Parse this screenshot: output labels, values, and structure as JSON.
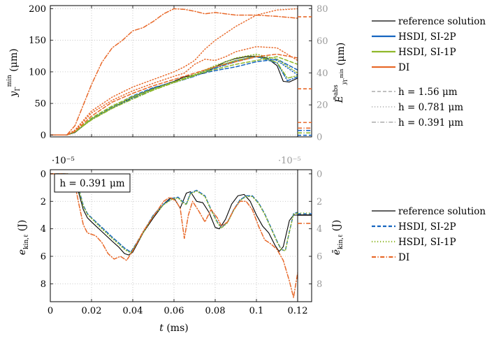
{
  "chart_data": [
    {
      "type": "line",
      "panel": "top",
      "ylabel": "y_Γ^min (μm)",
      "ylabel_right": "Ē^abs_{y_Γ^min} (μm)",
      "x_ticks": [
        "0",
        "0.02",
        "0.04",
        "0.06",
        "0.08",
        "0.1",
        "0.12"
      ],
      "y_ticks": [
        "0",
        "50",
        "100",
        "150",
        "200"
      ],
      "y_ticks_right": [
        "0",
        "20",
        "40",
        "60",
        "80"
      ],
      "xlim": [
        0,
        0.12
      ],
      "ylim": [
        205,
        -3
      ],
      "ylim_right": [
        0,
        82
      ],
      "y_inverted": true,
      "grid": true,
      "legend_methods": [
        "reference solution",
        "HSDI, SI-2P",
        "HSDI, SI-1P",
        "DI"
      ],
      "legend_resolutions": [
        "h = 1.56 μm",
        "h = 0.781 μm",
        "h = 0.391 μm"
      ],
      "series": [
        {
          "method": "reference",
          "style": "solid",
          "color": "#000000",
          "x": [
            0,
            0.008,
            0.012,
            0.02,
            0.03,
            0.04,
            0.05,
            0.06,
            0.065,
            0.07,
            0.075,
            0.08,
            0.085,
            0.09,
            0.095,
            0.1,
            0.105,
            0.11,
            0.113,
            0.116,
            0.12
          ],
          "y": [
            0,
            0,
            4,
            25,
            43,
            60,
            74,
            85,
            92,
            95,
            98,
            108,
            116,
            121,
            124,
            125,
            122,
            110,
            85,
            84,
            90
          ]
        },
        {
          "method": "HSDI, SI-2P",
          "style": "dashed",
          "color": "#1565c0",
          "x": [
            0,
            0.008,
            0.012,
            0.02,
            0.03,
            0.04,
            0.05,
            0.06,
            0.07,
            0.08,
            0.09,
            0.1,
            0.11,
            0.12
          ],
          "y": [
            0,
            0,
            5,
            26,
            45,
            62,
            75,
            84,
            95,
            102,
            108,
            116,
            120,
            103
          ]
        },
        {
          "method": "HSDI, SI-2P",
          "style": "dotted",
          "color": "#1565c0",
          "x": [
            0,
            0.008,
            0.012,
            0.02,
            0.03,
            0.04,
            0.05,
            0.06,
            0.07,
            0.08,
            0.09,
            0.1,
            0.11,
            0.12
          ],
          "y": [
            0,
            0,
            5,
            25,
            44,
            60,
            73,
            83,
            95,
            108,
            118,
            124,
            118,
            95
          ]
        },
        {
          "method": "HSDI, SI-2P",
          "style": "dashdot",
          "color": "#1565c0",
          "x": [
            0,
            0.008,
            0.012,
            0.02,
            0.03,
            0.04,
            0.05,
            0.06,
            0.07,
            0.08,
            0.09,
            0.1,
            0.11,
            0.115,
            0.12
          ],
          "y": [
            0,
            0,
            5,
            25,
            43,
            58,
            72,
            83,
            93,
            106,
            116,
            124,
            114,
            86,
            92
          ]
        },
        {
          "method": "HSDI, SI-1P",
          "style": "dashed",
          "color": "#8fb82a",
          "x": [
            0,
            0.008,
            0.012,
            0.02,
            0.03,
            0.04,
            0.05,
            0.06,
            0.07,
            0.08,
            0.09,
            0.1,
            0.11,
            0.12
          ],
          "y": [
            0,
            0,
            5,
            27,
            46,
            61,
            73,
            84,
            95,
            104,
            112,
            118,
            124,
            112
          ]
        },
        {
          "method": "HSDI, SI-1P",
          "style": "dotted",
          "color": "#8fb82a",
          "x": [
            0,
            0.008,
            0.012,
            0.02,
            0.03,
            0.04,
            0.05,
            0.06,
            0.07,
            0.08,
            0.09,
            0.1,
            0.11,
            0.12
          ],
          "y": [
            0,
            0,
            5,
            25,
            44,
            60,
            72,
            84,
            96,
            110,
            122,
            128,
            120,
            98
          ]
        },
        {
          "method": "HSDI, SI-1P",
          "style": "dashdot",
          "color": "#8fb82a",
          "x": [
            0,
            0.008,
            0.012,
            0.02,
            0.03,
            0.04,
            0.05,
            0.06,
            0.07,
            0.08,
            0.09,
            0.1,
            0.11,
            0.115,
            0.12
          ],
          "y": [
            0,
            0,
            5,
            24,
            42,
            57,
            71,
            83,
            94,
            108,
            118,
            125,
            115,
            90,
            94
          ]
        },
        {
          "method": "DI",
          "style": "dashed",
          "color": "#e8692a",
          "x": [
            0,
            0.008,
            0.012,
            0.02,
            0.03,
            0.04,
            0.05,
            0.06,
            0.07,
            0.08,
            0.09,
            0.1,
            0.11,
            0.12
          ],
          "y": [
            0,
            0,
            6,
            30,
            52,
            66,
            78,
            88,
            98,
            108,
            116,
            124,
            128,
            122
          ]
        },
        {
          "method": "DI",
          "style": "dotted",
          "color": "#e8692a",
          "x": [
            0,
            0.008,
            0.012,
            0.02,
            0.03,
            0.04,
            0.05,
            0.06,
            0.065,
            0.07,
            0.075,
            0.08,
            0.09,
            0.1,
            0.11,
            0.12
          ],
          "y": [
            0,
            0,
            8,
            38,
            60,
            76,
            88,
            100,
            108,
            118,
            136,
            150,
            172,
            190,
            198,
            200
          ]
        },
        {
          "method": "DI",
          "style": "dashdot",
          "color": "#e8692a",
          "x": [
            0,
            0.008,
            0.012,
            0.02,
            0.025,
            0.03,
            0.035,
            0.04,
            0.045,
            0.05,
            0.055,
            0.06,
            0.065,
            0.07,
            0.075,
            0.08,
            0.09,
            0.1,
            0.11,
            0.12
          ],
          "y": [
            0,
            0,
            15,
            80,
            115,
            138,
            150,
            165,
            170,
            180,
            192,
            200,
            199,
            196,
            192,
            194,
            190,
            190,
            188,
            185
          ]
        },
        {
          "method": "DI",
          "style": "dotted",
          "color": "#e8692a",
          "x": [
            0,
            0.008,
            0.012,
            0.02,
            0.03,
            0.04,
            0.05,
            0.06,
            0.065,
            0.07,
            0.075,
            0.08,
            0.085,
            0.09,
            0.1,
            0.11,
            0.12
          ],
          "y": [
            0,
            0,
            7,
            35,
            55,
            70,
            82,
            93,
            98,
            112,
            120,
            118,
            124,
            132,
            140,
            138,
            118
          ]
        }
      ],
      "right_axis_markers": [
        {
          "color": "#e8692a",
          "style": "dashed",
          "value": 75
        },
        {
          "color": "#e8692a",
          "style": "dashed",
          "value": 30
        },
        {
          "color": "#e8692a",
          "style": "dashed",
          "value": 9
        },
        {
          "color": "#e8692a",
          "style": "dashdot",
          "value": 5.5
        },
        {
          "color": "#1565c0",
          "style": "dashdot",
          "value": 4
        },
        {
          "color": "#8fb82a",
          "style": "dashdot",
          "value": 2.5
        },
        {
          "color": "#1565c0",
          "style": "dashed",
          "value": 1
        }
      ]
    },
    {
      "type": "line",
      "panel": "bottom",
      "title_box": "h = 0.391 μm",
      "xlabel": "t (ms)",
      "ylabel": "e_kin,ℓ (J)",
      "ylabel_right": "ē_kin,ℓ (J)",
      "exponent_left": "·10⁻⁵",
      "exponent_right": "·10⁻⁵",
      "x_ticks": [
        "0",
        "0.02",
        "0.04",
        "0.06",
        "0.08",
        "0.1",
        "0.12"
      ],
      "y_ticks": [
        "0",
        "2",
        "4",
        "6",
        "8"
      ],
      "y_ticks_right": [
        "0",
        "2",
        "4",
        "6",
        "8"
      ],
      "xlim": [
        0,
        0.12
      ],
      "ylim": [
        -0.3,
        9.3
      ],
      "grid": true,
      "legend": [
        "reference solution",
        "HSDI, SI-2P",
        "HSDI, SI-1P",
        "DI"
      ],
      "series": [
        {
          "name": "reference solution",
          "style": "solid",
          "color": "#000000",
          "x": [
            0,
            0.008,
            0.01,
            0.012,
            0.014,
            0.016,
            0.018,
            0.02,
            0.025,
            0.03,
            0.033,
            0.036,
            0.038,
            0.04,
            0.045,
            0.05,
            0.055,
            0.058,
            0.06,
            0.063,
            0.066,
            0.068,
            0.071,
            0.074,
            0.077,
            0.08,
            0.082,
            0.085,
            0.088,
            0.091,
            0.094,
            0.097,
            0.1,
            0.103,
            0.106,
            0.109,
            0.111,
            0.113,
            0.116,
            0.118,
            0.12
          ],
          "y": [
            0,
            0,
            0.05,
            0.4,
            1.5,
            2.6,
            3.2,
            3.5,
            4.2,
            4.9,
            5.3,
            5.8,
            5.9,
            5.7,
            4.3,
            3.2,
            2.2,
            1.8,
            1.75,
            2.5,
            1.4,
            1.3,
            2.0,
            2.1,
            2.8,
            3.9,
            4.0,
            3.3,
            2.2,
            1.6,
            1.5,
            2.0,
            3.0,
            3.8,
            4.3,
            5.2,
            5.65,
            5.3,
            3.4,
            3.0,
            3.0
          ]
        },
        {
          "name": "HSDI, SI-2P",
          "style": "dashed",
          "color": "#1565c0",
          "x": [
            0,
            0.008,
            0.01,
            0.012,
            0.014,
            0.016,
            0.018,
            0.02,
            0.025,
            0.03,
            0.033,
            0.036,
            0.039,
            0.042,
            0.046,
            0.05,
            0.055,
            0.059,
            0.062,
            0.064,
            0.066,
            0.068,
            0.071,
            0.075,
            0.078,
            0.081,
            0.083,
            0.086,
            0.089,
            0.092,
            0.095,
            0.098,
            0.101,
            0.104,
            0.107,
            0.11,
            0.112,
            0.114,
            0.116,
            0.118,
            0.12
          ],
          "y": [
            0,
            0,
            0.05,
            0.3,
            1.2,
            2.3,
            2.9,
            3.2,
            3.9,
            4.6,
            5.0,
            5.4,
            5.7,
            5.0,
            4.0,
            3.0,
            2.2,
            1.8,
            1.7,
            2.0,
            2.2,
            1.4,
            1.2,
            1.6,
            2.6,
            3.5,
            3.9,
            3.5,
            2.6,
            1.9,
            1.6,
            1.6,
            2.1,
            2.9,
            3.9,
            4.9,
            5.5,
            5.6,
            4.2,
            2.9,
            2.8
          ]
        },
        {
          "name": "HSDI, SI-1P",
          "style": "dotted",
          "color": "#8fb82a",
          "x": [
            0,
            0.008,
            0.01,
            0.012,
            0.014,
            0.016,
            0.018,
            0.02,
            0.025,
            0.03,
            0.033,
            0.036,
            0.039,
            0.042,
            0.046,
            0.05,
            0.055,
            0.059,
            0.062,
            0.064,
            0.066,
            0.068,
            0.071,
            0.075,
            0.078,
            0.081,
            0.083,
            0.086,
            0.089,
            0.092,
            0.095,
            0.098,
            0.101,
            0.104,
            0.107,
            0.11,
            0.112,
            0.114,
            0.116,
            0.118,
            0.12
          ],
          "y": [
            0,
            0,
            0.05,
            0.35,
            1.25,
            2.35,
            2.95,
            3.25,
            4.0,
            4.7,
            5.1,
            5.5,
            5.75,
            5.05,
            4.05,
            3.05,
            2.25,
            1.85,
            1.75,
            2.05,
            2.25,
            1.45,
            1.25,
            1.65,
            2.65,
            3.55,
            3.95,
            3.55,
            2.65,
            1.95,
            1.65,
            1.65,
            2.15,
            2.95,
            3.95,
            4.95,
            5.5,
            5.6,
            4.2,
            2.95,
            2.85
          ]
        },
        {
          "name": "DI",
          "style": "dashdot",
          "color": "#e8692a",
          "x": [
            0,
            0.008,
            0.01,
            0.012,
            0.014,
            0.016,
            0.018,
            0.02,
            0.022,
            0.025,
            0.028,
            0.031,
            0.034,
            0.037,
            0.04,
            0.045,
            0.05,
            0.055,
            0.058,
            0.061,
            0.063,
            0.065,
            0.067,
            0.069,
            0.072,
            0.075,
            0.078,
            0.081,
            0.083,
            0.086,
            0.089,
            0.092,
            0.095,
            0.098,
            0.101,
            0.104,
            0.107,
            0.11,
            0.113,
            0.116,
            0.118,
            0.12
          ],
          "y": [
            0,
            0,
            0.05,
            0.8,
            2.3,
            3.7,
            4.3,
            4.4,
            4.5,
            5.0,
            5.8,
            6.2,
            6.0,
            6.3,
            5.6,
            4.2,
            3.1,
            2.0,
            1.7,
            2.0,
            2.5,
            4.7,
            3.0,
            2.0,
            2.7,
            3.5,
            2.6,
            3.2,
            3.8,
            3.5,
            2.6,
            2.0,
            2.0,
            2.6,
            3.8,
            4.8,
            5.1,
            5.5,
            6.3,
            7.8,
            9.0,
            7.2
          ]
        }
      ],
      "right_axis_markers": [
        {
          "color": "#e8692a",
          "style": "dashdot",
          "value": 3.6
        },
        {
          "color": "#000000",
          "style": "solid",
          "value": 3.0
        },
        {
          "color": "#1565c0",
          "style": "dashed",
          "value": 2.9
        },
        {
          "color": "#8fb82a",
          "style": "dotted",
          "value": 2.85
        }
      ]
    }
  ]
}
